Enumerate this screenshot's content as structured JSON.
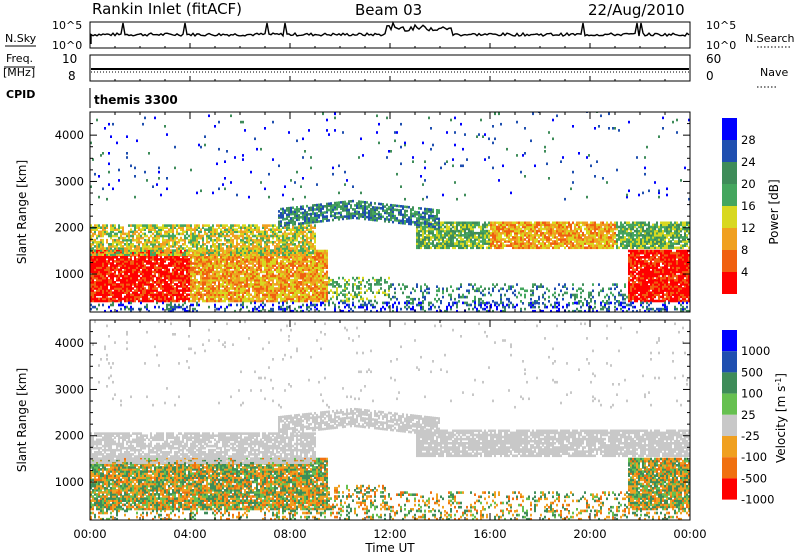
{
  "header": {
    "station": "Rankin Inlet (fitACF)",
    "beam": "Beam 03",
    "date": "22/Aug/2010"
  },
  "left_labels": {
    "nsky": "N.Sky",
    "freq": "Freq.",
    "mhz": "[MHz]",
    "cpid": "CPID"
  },
  "right_labels": {
    "nsearch": "N.Search",
    "nave": "Nave"
  },
  "nsky_ticks": [
    "10^5",
    "10^0"
  ],
  "nsearch_ticks": [
    "10^5",
    "10^0"
  ],
  "freq_ticks": [
    "10",
    "8"
  ],
  "nave_ticks": [
    "60",
    "0"
  ],
  "cpid_text": "themis 3300",
  "colors": {
    "power_scale": [
      "#0000ff",
      "#1f4fb0",
      "#3e8c59",
      "#44a65e",
      "#d8d820",
      "#f0a020",
      "#f06010",
      "#ff0000"
    ],
    "velocity_scale": [
      "#0000ff",
      "#1f4fb0",
      "#3e8c59",
      "#66c050",
      "#c8c8c8",
      "#f0a020",
      "#f07010",
      "#ff0000"
    ]
  },
  "chart_data": [
    {
      "type": "line",
      "panel": "sky / search noise",
      "ylabel_left": "N.Sky",
      "ylabel_right": "N.Search",
      "y_scale": "log",
      "xlim_hours": [
        0,
        24
      ]
    },
    {
      "type": "line",
      "panel": "frequency / nave",
      "ylabel_left": "Freq. [MHz]",
      "ylabel_right": "Nave",
      "freq_ylim": [
        8,
        10
      ],
      "nave_ylim": [
        0,
        60
      ],
      "xlim_hours": [
        0,
        24
      ]
    },
    {
      "type": "heatmap",
      "panel": "power",
      "ylabel": "Slant Range [km]",
      "ylim": [
        180,
        4500
      ],
      "y_ticks": [
        "1000",
        "2000",
        "3000",
        "4000"
      ],
      "xlabel": "Time UT",
      "x_ticks": [
        "00:00",
        "04:00",
        "08:00",
        "12:00",
        "16:00",
        "20:00",
        "00:00"
      ],
      "colorbar_label": "Power [dB]",
      "colorbar_ticks": [
        "28",
        "24",
        "20",
        "16",
        "12",
        "8",
        "4"
      ]
    },
    {
      "type": "heatmap",
      "panel": "velocity",
      "ylabel": "Slant Range [km]",
      "ylim": [
        180,
        4500
      ],
      "y_ticks": [
        "1000",
        "2000",
        "3000",
        "4000"
      ],
      "xlabel": "Time UT",
      "x_ticks": [
        "00:00",
        "04:00",
        "08:00",
        "12:00",
        "16:00",
        "20:00",
        "00:00"
      ],
      "colorbar_label": "Velocity [m s^-1]",
      "colorbar_ticks": [
        "1000",
        "500",
        "100",
        "25",
        "-25",
        "-100",
        "-500",
        "-1000"
      ]
    }
  ],
  "xlabel": "Time UT",
  "power_cb_label": "Power [dB]",
  "velocity_cb_label": "Velocity [m s",
  "velocity_cb_sup": "-1",
  "velocity_cb_close": "]",
  "slant_label": "Slant Range [km]"
}
